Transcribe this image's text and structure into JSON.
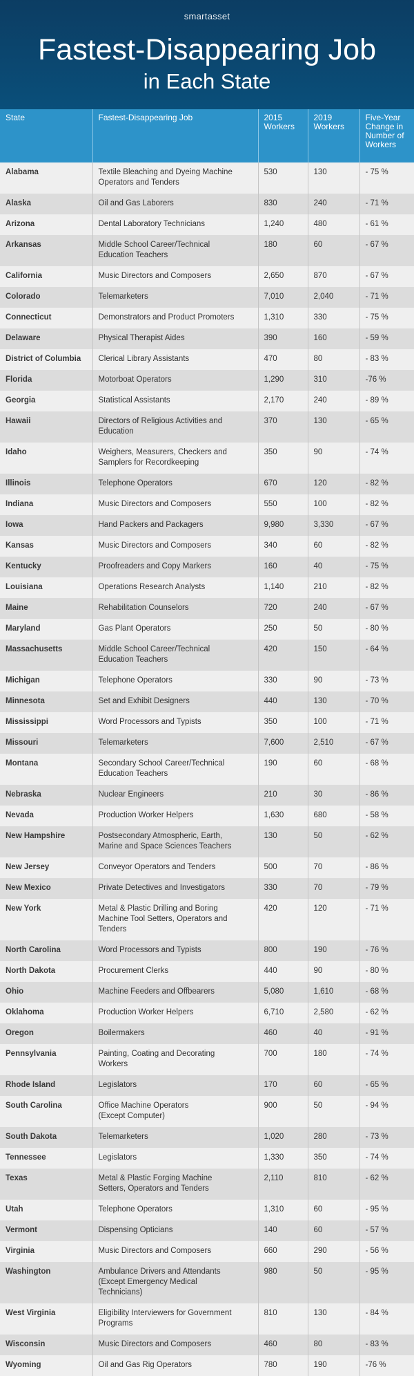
{
  "header": {
    "brand": "smartasset",
    "title": "Fastest-Disappearing Job",
    "subtitle": "in Each State"
  },
  "table": {
    "columns": [
      [
        "State"
      ],
      [
        "Fastest-Disappearing Job"
      ],
      [
        "2015",
        "Workers"
      ],
      [
        "2019",
        "Workers"
      ],
      [
        "Five-Year",
        "Change in",
        "Number of",
        "Workers"
      ]
    ],
    "rows": [
      [
        "Alabama",
        [
          "Textile Bleaching and Dyeing Machine",
          "Operators and Tenders"
        ],
        "530",
        "130",
        "- 75 %"
      ],
      [
        "Alaska",
        [
          "Oil and Gas Laborers"
        ],
        "830",
        "240",
        "- 71 %"
      ],
      [
        "Arizona",
        [
          "Dental Laboratory Technicians"
        ],
        "1,240",
        "480",
        "- 61 %"
      ],
      [
        "Arkansas",
        [
          "Middle School Career/Technical",
          "Education Teachers"
        ],
        "180",
        "60",
        "- 67 %"
      ],
      [
        "California",
        [
          "Music Directors and Composers"
        ],
        "2,650",
        "870",
        "- 67 %"
      ],
      [
        "Colorado",
        [
          "Telemarketers"
        ],
        "7,010",
        "2,040",
        "- 71 %"
      ],
      [
        "Connecticut",
        [
          "Demonstrators and Product Promoters"
        ],
        "1,310",
        "330",
        "- 75 %"
      ],
      [
        "Delaware",
        [
          "Physical Therapist Aides"
        ],
        "390",
        "160",
        "- 59 %"
      ],
      [
        "District of Columbia",
        [
          "Clerical Library Assistants"
        ],
        "470",
        "80",
        "- 83 %"
      ],
      [
        "Florida",
        [
          "Motorboat Operators"
        ],
        "1,290",
        "310",
        "-76 %"
      ],
      [
        "Georgia",
        [
          "Statistical Assistants"
        ],
        "2,170",
        "240",
        "- 89 %"
      ],
      [
        "Hawaii",
        [
          "Directors of Religious Activities and",
          "Education"
        ],
        "370",
        "130",
        "- 65 %"
      ],
      [
        "Idaho",
        [
          "Weighers, Measurers, Checkers and",
          "Samplers for Recordkeeping"
        ],
        "350",
        "90",
        "- 74 %"
      ],
      [
        "Illinois",
        [
          "Telephone Operators"
        ],
        "670",
        "120",
        "- 82 %"
      ],
      [
        "Indiana",
        [
          "Music Directors and Composers"
        ],
        "550",
        "100",
        "- 82 %"
      ],
      [
        "Iowa",
        [
          "Hand Packers and Packagers"
        ],
        "9,980",
        "3,330",
        "- 67 %"
      ],
      [
        "Kansas",
        [
          "Music Directors and Composers"
        ],
        "340",
        "60",
        "- 82 %"
      ],
      [
        "Kentucky",
        [
          "Proofreaders and Copy Markers"
        ],
        "160",
        "40",
        "- 75 %"
      ],
      [
        "Louisiana",
        [
          "Operations Research Analysts"
        ],
        "1,140",
        "210",
        "- 82 %"
      ],
      [
        "Maine",
        [
          "Rehabilitation Counselors"
        ],
        "720",
        "240",
        "- 67 %"
      ],
      [
        "Maryland",
        [
          "Gas Plant Operators"
        ],
        "250",
        "50",
        "- 80 %"
      ],
      [
        "Massachusetts",
        [
          "Middle School Career/Technical",
          "Education Teachers"
        ],
        "420",
        "150",
        "- 64 %"
      ],
      [
        "Michigan",
        [
          "Telephone Operators"
        ],
        "330",
        "90",
        "- 73 %"
      ],
      [
        "Minnesota",
        [
          "Set and Exhibit Designers"
        ],
        "440",
        "130",
        "- 70 %"
      ],
      [
        "Mississippi",
        [
          "Word Processors and Typists"
        ],
        "350",
        "100",
        "- 71 %"
      ],
      [
        "Missouri",
        [
          "Telemarketers"
        ],
        "7,600",
        "2,510",
        "- 67 %"
      ],
      [
        "Montana",
        [
          "Secondary School Career/Technical",
          "Education Teachers"
        ],
        "190",
        "60",
        "- 68 %"
      ],
      [
        "Nebraska",
        [
          "Nuclear Engineers"
        ],
        "210",
        "30",
        "- 86 %"
      ],
      [
        "Nevada",
        [
          "Production Worker Helpers"
        ],
        "1,630",
        "680",
        "- 58 %"
      ],
      [
        "New Hampshire",
        [
          "Postsecondary Atmospheric, Earth,",
          "Marine and Space Sciences Teachers"
        ],
        "130",
        "50",
        "- 62 %"
      ],
      [
        "New Jersey",
        [
          "Conveyor Operators and Tenders"
        ],
        "500",
        "70",
        "- 86 %"
      ],
      [
        "New Mexico",
        [
          "Private Detectives and Investigators"
        ],
        "330",
        "70",
        "- 79 %"
      ],
      [
        "New York",
        [
          "Metal & Plastic Drilling and Boring",
          "Machine Tool Setters, Operators and",
          "Tenders"
        ],
        "420",
        "120",
        "- 71 %"
      ],
      [
        "North Carolina",
        [
          "Word Processors and Typists"
        ],
        "800",
        "190",
        "- 76 %"
      ],
      [
        "North Dakota",
        [
          "Procurement Clerks"
        ],
        "440",
        "90",
        "- 80 %"
      ],
      [
        "Ohio",
        [
          "Machine Feeders and Offbearers"
        ],
        "5,080",
        "1,610",
        "- 68 %"
      ],
      [
        "Oklahoma",
        [
          "Production Worker Helpers"
        ],
        "6,710",
        "2,580",
        "- 62 %"
      ],
      [
        "Oregon",
        [
          "Boilermakers"
        ],
        "460",
        "40",
        "- 91 %"
      ],
      [
        "Pennsylvania",
        [
          "Painting, Coating and Decorating",
          "Workers"
        ],
        "700",
        "180",
        "- 74 %"
      ],
      [
        "Rhode Island",
        [
          "Legislators"
        ],
        "170",
        "60",
        "- 65 %"
      ],
      [
        "South Carolina",
        [
          "Office Machine Operators",
          "(Except Computer)"
        ],
        "900",
        "50",
        "- 94 %"
      ],
      [
        "South Dakota",
        [
          "Telemarketers"
        ],
        "1,020",
        "280",
        "- 73 %"
      ],
      [
        "Tennessee",
        [
          "Legislators"
        ],
        "1,330",
        "350",
        "- 74 %"
      ],
      [
        "Texas",
        [
          "Metal & Plastic Forging Machine",
          "Setters, Operators and Tenders"
        ],
        "2,110",
        "810",
        "- 62 %"
      ],
      [
        "Utah",
        [
          "Telephone Operators"
        ],
        "1,310",
        "60",
        "- 95 %"
      ],
      [
        "Vermont",
        [
          "Dispensing Opticians"
        ],
        "140",
        "60",
        "- 57 %"
      ],
      [
        "Virginia",
        [
          "Music Directors and Composers"
        ],
        "660",
        "290",
        "- 56 %"
      ],
      [
        "Washington",
        [
          "Ambulance Drivers and Attendants",
          "(Except Emergency Medical",
          "Technicians)"
        ],
        "980",
        "50",
        "- 95 %"
      ],
      [
        "West Virginia",
        [
          "Eligibility Interviewers for Government",
          "Programs"
        ],
        "810",
        "130",
        "- 84 %"
      ],
      [
        "Wisconsin",
        [
          "Music Directors and Composers"
        ],
        "460",
        "80",
        "- 83 %"
      ],
      [
        "Wyoming",
        [
          "Oil and Gas Rig Operators"
        ],
        "780",
        "190",
        "-76 %"
      ]
    ]
  }
}
